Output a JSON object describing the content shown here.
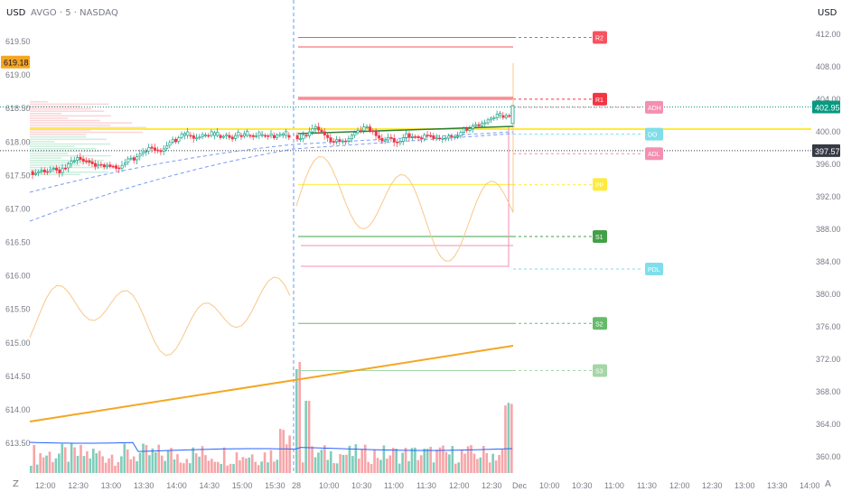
{
  "header": {
    "currency_left": "USD",
    "currency_right": "USD",
    "symbol": "AVGO · 5 · NASDAQ"
  },
  "left_axis": {
    "ticks": [
      "619.50",
      "619.00",
      "618.50",
      "618.00",
      "617.50",
      "617.00",
      "616.50",
      "616.00",
      "615.50",
      "615.00",
      "614.50",
      "614.00",
      "613.50"
    ],
    "current_label": "619.18",
    "current_value": 619.18,
    "min": 613.5,
    "max": 619.5
  },
  "right_axis": {
    "ticks": [
      "412.00",
      "408.00",
      "404.00",
      "400.00",
      "396.00",
      "392.00",
      "388.00",
      "384.00",
      "380.00",
      "376.00",
      "372.00",
      "368.00",
      "364.00",
      "360.00"
    ],
    "price_tag": "402.95",
    "price_value": 402.95,
    "price_color": "#089981",
    "second_tag": "397.57",
    "second_value": 397.57,
    "second_color": "#363a45",
    "min": 360,
    "max": 412
  },
  "time_axis": {
    "labels": [
      "12:00",
      "12:30",
      "13:00",
      "13:30",
      "14:00",
      "14:30",
      "15:00",
      "15:30",
      "28",
      "10:00",
      "10:30",
      "11:00",
      "11:30",
      "12:00",
      "12:30",
      "Dec",
      "10:00",
      "10:30",
      "11:00",
      "11:30",
      "12:00",
      "12:30",
      "13:00",
      "13:30",
      "14:00"
    ]
  },
  "bottom_left": "Z",
  "bottom_right": "A",
  "pivot_levels": [
    {
      "label": "R2",
      "value": 411.5,
      "color": "#f7525f"
    },
    {
      "label": "R1",
      "value": 403.9,
      "color": "#f23645"
    },
    {
      "label": "PP",
      "value": 393.4,
      "color": "#ffeb3b"
    },
    {
      "label": "S1",
      "value": 387.0,
      "color": "#43a047"
    },
    {
      "label": "S2",
      "value": 376.3,
      "color": "#66bb6a"
    },
    {
      "label": "S3",
      "value": 370.5,
      "color": "#a5d6a7"
    }
  ],
  "side_labels": [
    {
      "label": "ADH",
      "value": 402.9,
      "color": "#f48fb1"
    },
    {
      "label": "DO",
      "value": 399.6,
      "color": "#80deea"
    },
    {
      "label": "ADL",
      "value": 397.2,
      "color": "#f48fb1"
    },
    {
      "label": "PDL",
      "value": 383.0,
      "color": "#80deea"
    }
  ],
  "colors": {
    "up": "#089981",
    "down": "#f23645",
    "vol_up": "#7fcdbb",
    "vol_down": "#f7a5a8",
    "ma": "#f5a623",
    "vwap": "#2962ff"
  }
}
